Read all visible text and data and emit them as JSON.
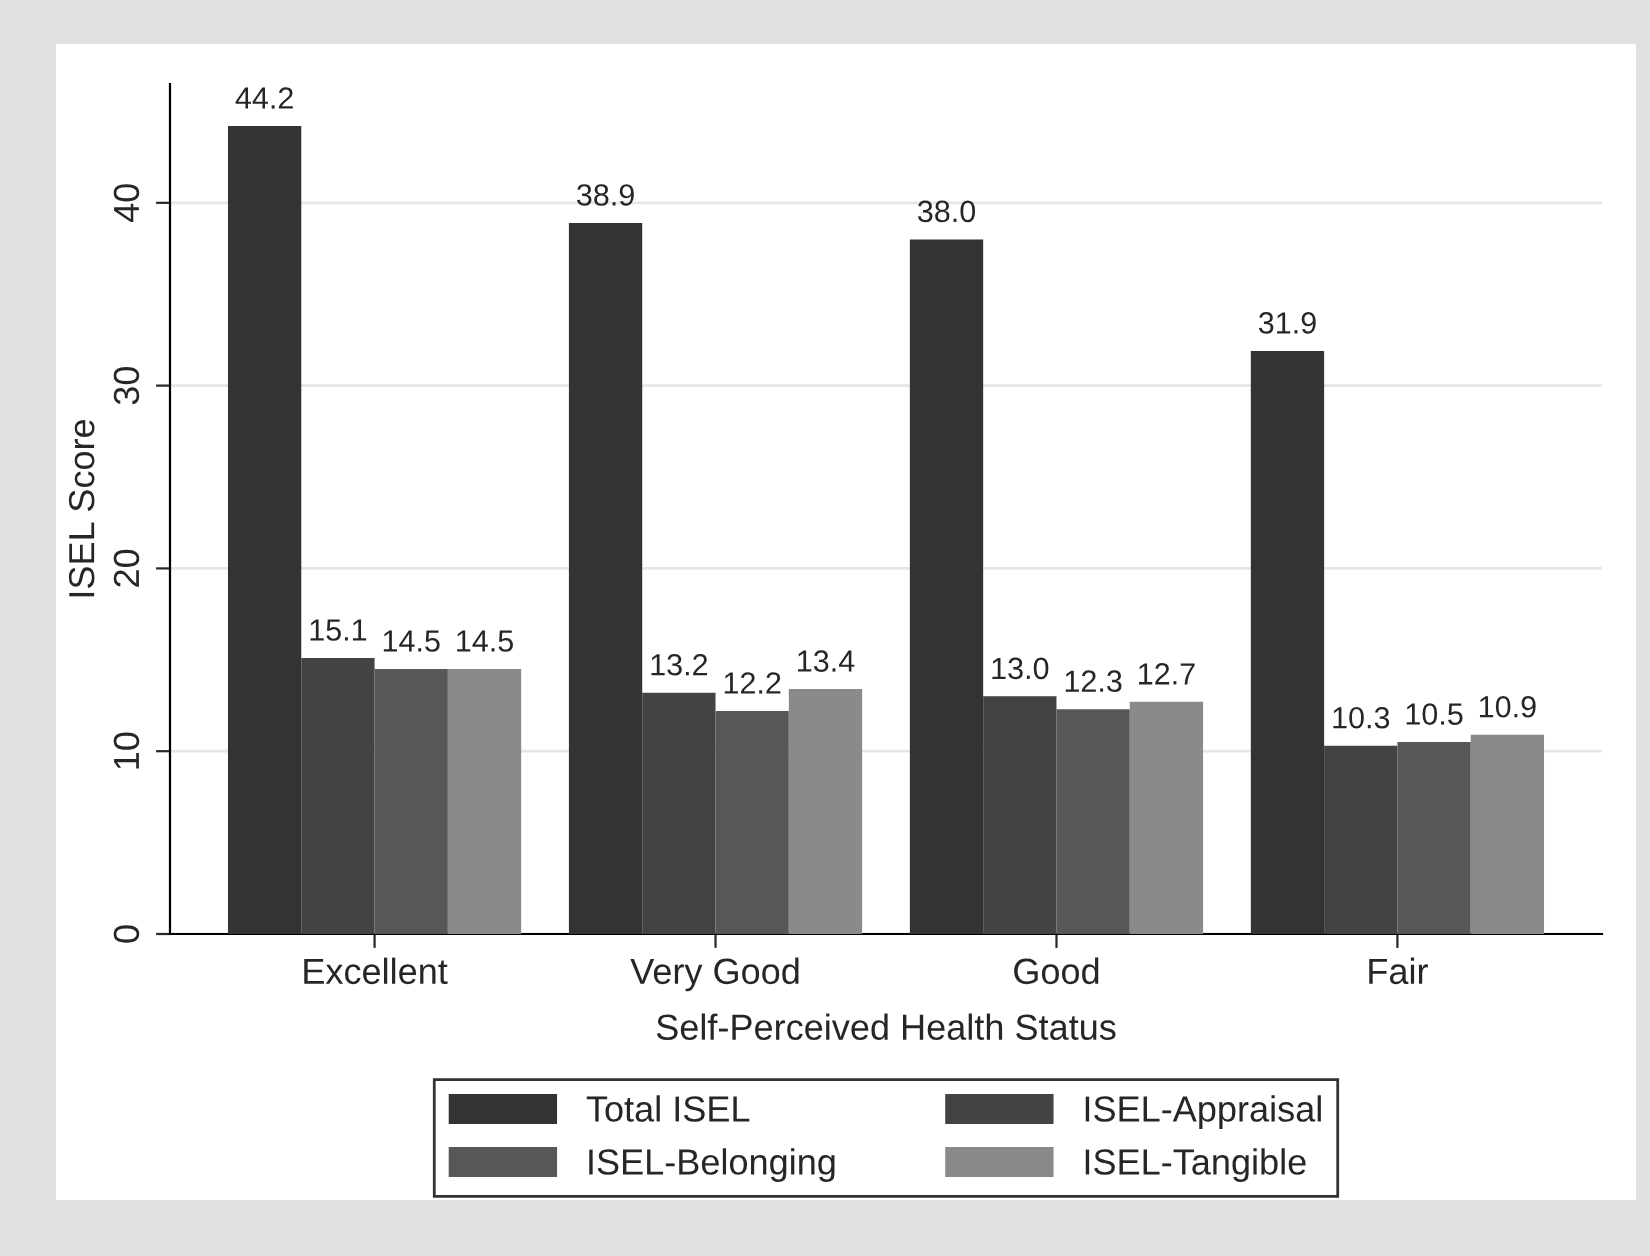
{
  "chart_data": {
    "type": "bar",
    "xlabel": "Self-Perceived Health Status",
    "ylabel": "ISEL Score",
    "categories": [
      "Excellent",
      "Very Good",
      "Good",
      "Fair"
    ],
    "series": [
      {
        "name": "Total ISEL",
        "color": "#333333",
        "values": [
          44.2,
          38.9,
          38.0,
          31.9
        ],
        "value_labels": [
          "44.2",
          "38.9",
          "38.0",
          "31.9"
        ]
      },
      {
        "name": "ISEL-Appraisal",
        "color": "#434343",
        "values": [
          15.1,
          13.2,
          13.0,
          10.3
        ],
        "value_labels": [
          "15.1",
          "13.2",
          "13.0",
          "10.3"
        ]
      },
      {
        "name": "ISEL-Belonging",
        "color": "#575757",
        "values": [
          14.5,
          12.2,
          12.3,
          10.5
        ],
        "value_labels": [
          "14.5",
          "12.2",
          "12.3",
          "10.5"
        ]
      },
      {
        "name": "ISEL-Tangible",
        "color": "#8a8a8a",
        "values": [
          14.5,
          13.4,
          12.7,
          10.9
        ],
        "value_labels": [
          "14.5",
          "13.4",
          "12.7",
          "10.9"
        ]
      }
    ],
    "ylim": [
      0,
      46.5
    ],
    "yticks": [
      0,
      10,
      20,
      30,
      40
    ],
    "grid": "y",
    "legend": "bottom"
  }
}
